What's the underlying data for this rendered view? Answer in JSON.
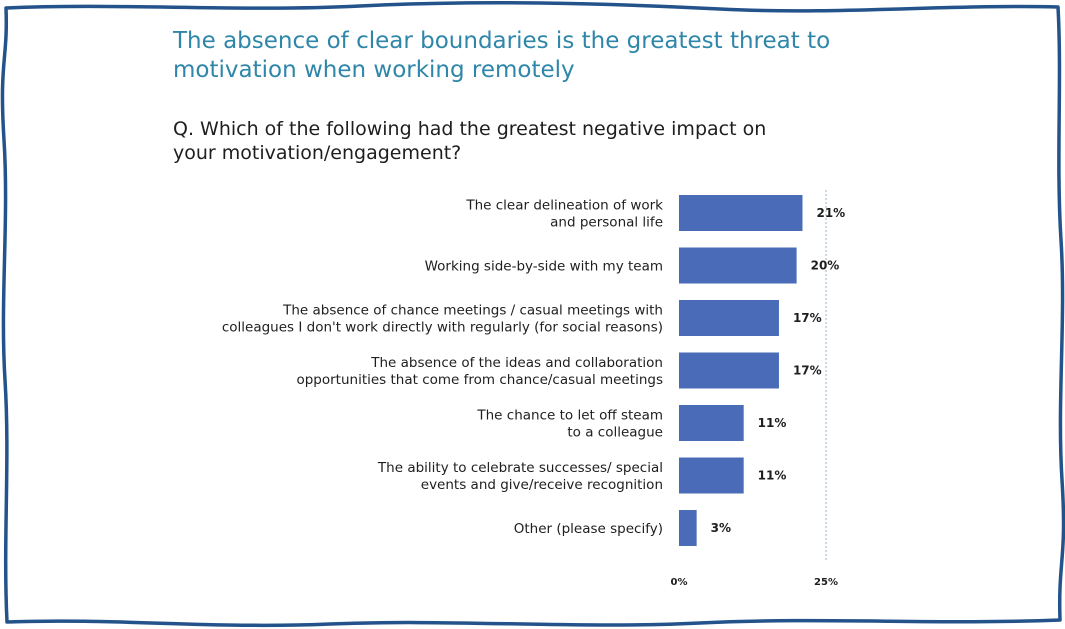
{
  "title": "The absence of clear boundaries is the greatest threat to motivation when working remotely",
  "question": "Q. Which of the following had the greatest negative impact on your motivation/engagement?",
  "colors": {
    "bar": "#4a6bb8",
    "border": "#23538a",
    "title": "#2e86a8",
    "grid": "#9ab6c8"
  },
  "chart_data": {
    "type": "bar",
    "orientation": "horizontal",
    "categories": [
      [
        "The clear delineation of work",
        "and personal life"
      ],
      [
        "Working side-by-side with my team"
      ],
      [
        "The absence of chance meetings / casual meetings with",
        "colleagues I don't work directly with regularly (for social reasons)"
      ],
      [
        "The absence of the ideas and collaboration",
        "opportunities that come from chance/casual meetings"
      ],
      [
        "The chance to let off steam",
        "to a colleague"
      ],
      [
        "The ability to celebrate successes/ special",
        "events and give/receive recognition"
      ],
      [
        "Other (please specify)"
      ]
    ],
    "values": [
      21,
      20,
      17,
      17,
      11,
      11,
      3
    ],
    "value_labels": [
      "21%",
      "20%",
      "17%",
      "17%",
      "11%",
      "11%",
      "3%"
    ],
    "xlim": [
      0,
      25
    ],
    "ticks": [
      0,
      25
    ],
    "tick_labels": [
      "0%",
      "25%"
    ],
    "grid": true
  }
}
